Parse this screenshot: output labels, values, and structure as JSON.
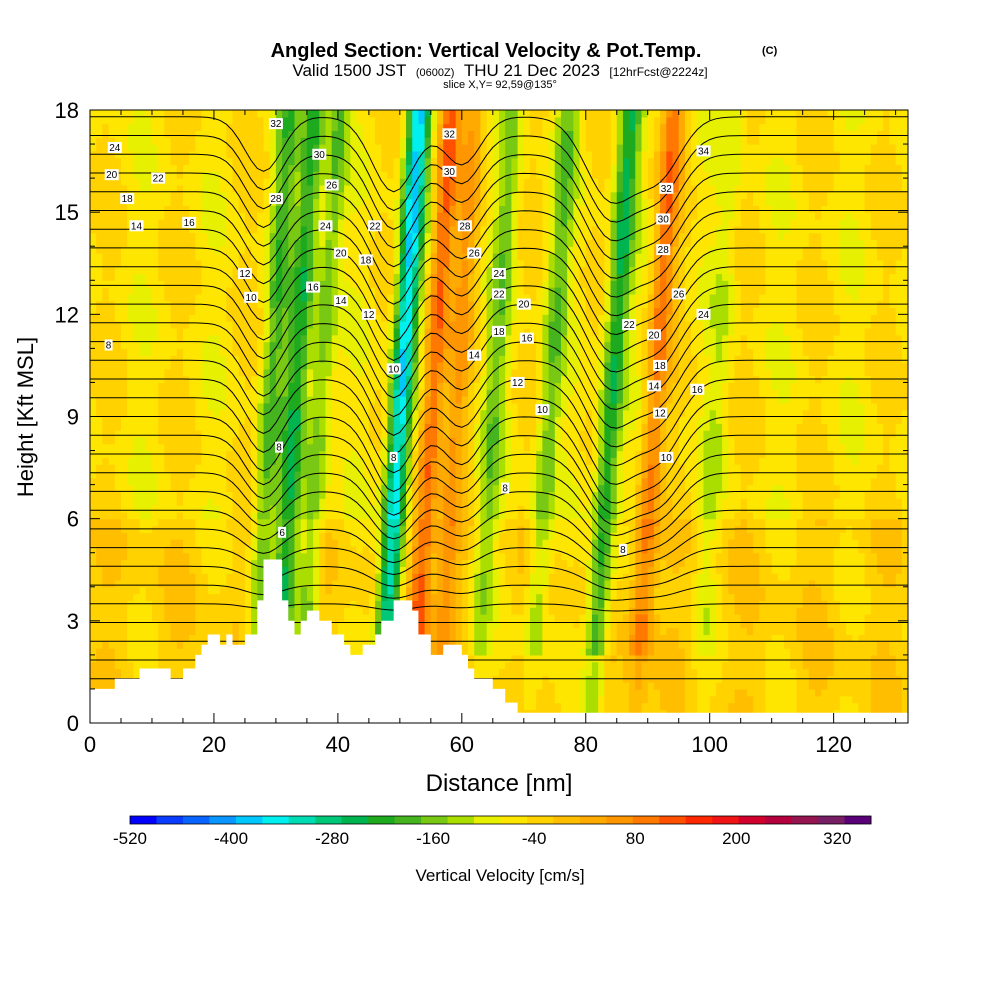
{
  "chart_data": {
    "type": "heatmap",
    "title": "Angled Section: Vertical Velocity & Pot.Temp.",
    "title_mark": "(C)",
    "subtitle": {
      "valid": "Valid 1500 JST",
      "utc": "(0600Z)",
      "date": "THU 21 Dec 2023",
      "fcst": "[12hrFcst@2224z]"
    },
    "slice_label": "slice X,Y= 92,59@135°",
    "xlabel": "Distance [nm]",
    "ylabel": "Height [Kft MSL]",
    "xlim": [
      0,
      132
    ],
    "ylim": [
      0,
      18
    ],
    "x_ticks": [
      "0",
      "20",
      "40",
      "60",
      "80",
      "100",
      "120"
    ],
    "y_ticks": [
      "0",
      "3",
      "6",
      "9",
      "12",
      "15",
      "18"
    ],
    "colorbar": {
      "label": "Vertical Velocity [cm/s]",
      "tick_labels": [
        "-520",
        "-400",
        "-280",
        "-160",
        "-40",
        "80",
        "200",
        "320"
      ],
      "tick_values": [
        -520,
        -400,
        -280,
        -160,
        -40,
        80,
        200,
        320
      ],
      "range": [
        -520,
        360
      ],
      "step": 40,
      "colors": [
        "#0000ff",
        "#0a3cff",
        "#0a64ff",
        "#0a96ff",
        "#00c8ff",
        "#00f0f0",
        "#00dcb4",
        "#00c878",
        "#00b450",
        "#1eaa1e",
        "#46b41e",
        "#78c814",
        "#aade00",
        "#e6f000",
        "#ffe600",
        "#ffd200",
        "#ffbe00",
        "#ffaa00",
        "#ff9600",
        "#ff7800",
        "#ff5000",
        "#ff2800",
        "#f01414",
        "#d2002d",
        "#b4003c",
        "#961450",
        "#781e64",
        "#5a0078"
      ]
    },
    "bands": [
      {
        "x": 28,
        "w": -160
      },
      {
        "x": 32,
        "w": -220
      },
      {
        "x": 36,
        "w": -150
      },
      {
        "x": 49,
        "w": -400
      },
      {
        "x": 54,
        "w": 220
      },
      {
        "x": 58,
        "w": 120
      },
      {
        "x": 64,
        "w": -120
      },
      {
        "x": 73,
        "w": -140
      },
      {
        "x": 83,
        "w": -240
      },
      {
        "x": 90,
        "w": 180
      },
      {
        "x": 100,
        "w": -60
      }
    ],
    "isentrope_labels": [
      {
        "text": "32",
        "x": 30,
        "y": 17.6
      },
      {
        "text": "30",
        "x": 37,
        "y": 16.7
      },
      {
        "text": "26",
        "x": 39,
        "y": 15.8
      },
      {
        "text": "28",
        "x": 30,
        "y": 15.4
      },
      {
        "text": "24",
        "x": 4,
        "y": 16.9
      },
      {
        "text": "20",
        "x": 3.5,
        "y": 16.1
      },
      {
        "text": "22",
        "x": 11,
        "y": 16.0
      },
      {
        "text": "18",
        "x": 6,
        "y": 15.4
      },
      {
        "text": "14",
        "x": 7.5,
        "y": 14.6
      },
      {
        "text": "16",
        "x": 16,
        "y": 14.7
      },
      {
        "text": "24",
        "x": 38,
        "y": 14.6
      },
      {
        "text": "22",
        "x": 46,
        "y": 14.6
      },
      {
        "text": "20",
        "x": 40.5,
        "y": 13.8
      },
      {
        "text": "18",
        "x": 44.5,
        "y": 13.6
      },
      {
        "text": "12",
        "x": 25,
        "y": 13.2
      },
      {
        "text": "16",
        "x": 36,
        "y": 12.8
      },
      {
        "text": "14",
        "x": 40.5,
        "y": 12.4
      },
      {
        "text": "10",
        "x": 26,
        "y": 12.5
      },
      {
        "text": "12",
        "x": 45,
        "y": 12.0
      },
      {
        "text": "8",
        "x": 3,
        "y": 11.1
      },
      {
        "text": "32",
        "x": 58,
        "y": 17.3
      },
      {
        "text": "30",
        "x": 58,
        "y": 16.2
      },
      {
        "text": "28",
        "x": 60.5,
        "y": 14.6
      },
      {
        "text": "26",
        "x": 62,
        "y": 13.8
      },
      {
        "text": "24",
        "x": 66,
        "y": 13.2
      },
      {
        "text": "22",
        "x": 66,
        "y": 12.6
      },
      {
        "text": "20",
        "x": 70,
        "y": 12.3
      },
      {
        "text": "18",
        "x": 66,
        "y": 11.5
      },
      {
        "text": "16",
        "x": 70.5,
        "y": 11.3
      },
      {
        "text": "14",
        "x": 62,
        "y": 10.8
      },
      {
        "text": "12",
        "x": 69,
        "y": 10.0
      },
      {
        "text": "10",
        "x": 49,
        "y": 10.4
      },
      {
        "text": "10",
        "x": 73,
        "y": 9.2
      },
      {
        "text": "8",
        "x": 49,
        "y": 7.8
      },
      {
        "text": "8",
        "x": 30.5,
        "y": 8.1
      },
      {
        "text": "8",
        "x": 67,
        "y": 6.9
      },
      {
        "text": "6",
        "x": 31,
        "y": 5.6
      },
      {
        "text": "8",
        "x": 86,
        "y": 5.1
      },
      {
        "text": "34",
        "x": 99,
        "y": 16.8
      },
      {
        "text": "32",
        "x": 93,
        "y": 15.7
      },
      {
        "text": "30",
        "x": 92.5,
        "y": 14.8
      },
      {
        "text": "28",
        "x": 92.5,
        "y": 13.9
      },
      {
        "text": "26",
        "x": 95,
        "y": 12.6
      },
      {
        "text": "24",
        "x": 99,
        "y": 12.0
      },
      {
        "text": "22",
        "x": 87,
        "y": 11.7
      },
      {
        "text": "20",
        "x": 91,
        "y": 11.4
      },
      {
        "text": "18",
        "x": 92,
        "y": 10.5
      },
      {
        "text": "14",
        "x": 91,
        "y": 9.9
      },
      {
        "text": "16",
        "x": 98,
        "y": 9.8
      },
      {
        "text": "12",
        "x": 92,
        "y": 9.1
      },
      {
        "text": "10",
        "x": 93,
        "y": 7.8
      }
    ],
    "terrain": [
      [
        0,
        1.0
      ],
      [
        4,
        1.0
      ],
      [
        4,
        1.3
      ],
      [
        8,
        1.3
      ],
      [
        8,
        1.6
      ],
      [
        13,
        1.6
      ],
      [
        13,
        1.3
      ],
      [
        15,
        1.3
      ],
      [
        15,
        1.6
      ],
      [
        17,
        1.6
      ],
      [
        17,
        2.0
      ],
      [
        18,
        2.0
      ],
      [
        18,
        2.3
      ],
      [
        19,
        2.3
      ],
      [
        19,
        2.6
      ],
      [
        21,
        2.6
      ],
      [
        21,
        2.3
      ],
      [
        22,
        2.3
      ],
      [
        22,
        2.6
      ],
      [
        23,
        2.6
      ],
      [
        23,
        2.3
      ],
      [
        25,
        2.3
      ],
      [
        25,
        2.6
      ],
      [
        27,
        2.6
      ],
      [
        27,
        3.6
      ],
      [
        28,
        3.6
      ],
      [
        28,
        4.8
      ],
      [
        31,
        4.8
      ],
      [
        31,
        3.6
      ],
      [
        32,
        3.6
      ],
      [
        32,
        3.0
      ],
      [
        33,
        3.0
      ],
      [
        33,
        2.6
      ],
      [
        34,
        2.6
      ],
      [
        34,
        3.0
      ],
      [
        35,
        3.0
      ],
      [
        35,
        3.3
      ],
      [
        37,
        3.3
      ],
      [
        37,
        3.0
      ],
      [
        39,
        3.0
      ],
      [
        39,
        2.6
      ],
      [
        41,
        2.6
      ],
      [
        41,
        2.3
      ],
      [
        42,
        2.3
      ],
      [
        42,
        2.0
      ],
      [
        44,
        2.0
      ],
      [
        44,
        2.3
      ],
      [
        46,
        2.3
      ],
      [
        46,
        2.6
      ],
      [
        47,
        2.6
      ],
      [
        47,
        3.0
      ],
      [
        49,
        3.0
      ],
      [
        49,
        3.6
      ],
      [
        52,
        3.6
      ],
      [
        52,
        3.3
      ],
      [
        53,
        3.3
      ],
      [
        53,
        2.6
      ],
      [
        55,
        2.6
      ],
      [
        55,
        2.0
      ],
      [
        57,
        2.0
      ],
      [
        57,
        2.3
      ],
      [
        60,
        2.3
      ],
      [
        60,
        2.0
      ],
      [
        61,
        2.0
      ],
      [
        61,
        1.6
      ],
      [
        62,
        1.6
      ],
      [
        62,
        1.3
      ],
      [
        65,
        1.3
      ],
      [
        65,
        1.0
      ],
      [
        67,
        1.0
      ],
      [
        67,
        0.6
      ],
      [
        69,
        0.6
      ],
      [
        69,
        0.3
      ],
      [
        132,
        0.3
      ],
      [
        132,
        0
      ]
    ]
  }
}
